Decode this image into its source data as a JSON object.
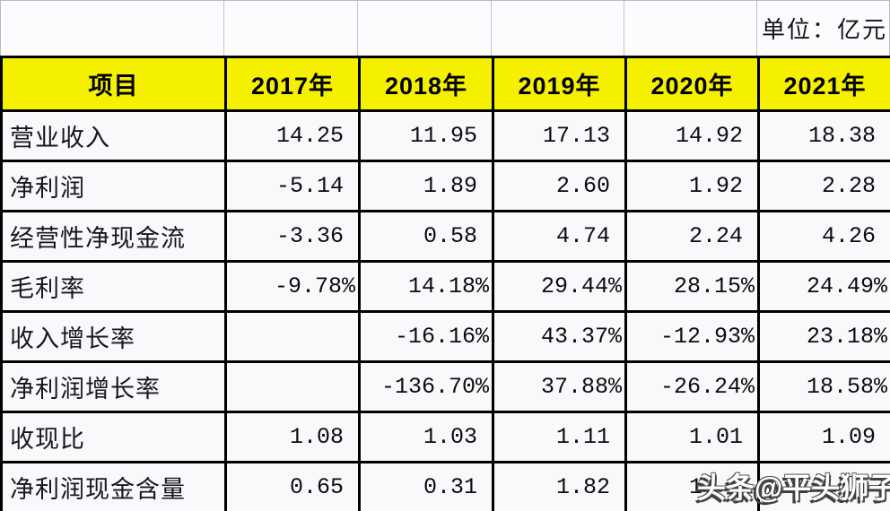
{
  "unit_label": "单位：亿元",
  "watermark": "头条@平头狮子",
  "table": {
    "header": [
      "项目",
      "2017年",
      "2018年",
      "2019年",
      "2020年",
      "2021年"
    ],
    "rows": [
      {
        "label": "营业收入",
        "pct": false,
        "values": [
          "14.25",
          "11.95",
          "17.13",
          "14.92",
          "18.38"
        ]
      },
      {
        "label": "净利润",
        "pct": false,
        "values": [
          "-5.14",
          "1.89",
          "2.60",
          "1.92",
          "2.28"
        ]
      },
      {
        "label": "经营性净现金流",
        "pct": false,
        "values": [
          "-3.36",
          "0.58",
          "4.74",
          "2.24",
          "4.26"
        ]
      },
      {
        "label": "毛利率",
        "pct": true,
        "values": [
          "-9.78%",
          "14.18%",
          "29.44%",
          "28.15%",
          "24.49%"
        ]
      },
      {
        "label": "收入增长率",
        "pct": true,
        "values": [
          "",
          "-16.16%",
          "43.37%",
          "-12.93%",
          "23.18%"
        ]
      },
      {
        "label": "净利润增长率",
        "pct": true,
        "values": [
          "",
          "-136.70%",
          "37.88%",
          "-26.24%",
          "18.58%"
        ]
      },
      {
        "label": "收现比",
        "pct": false,
        "values": [
          "1.08",
          "1.03",
          "1.11",
          "1.01",
          "1.09"
        ]
      },
      {
        "label": "净利润现金含量",
        "pct": false,
        "values": [
          "0.65",
          "0.31",
          "1.82",
          "1.  ",
          ""
        ]
      }
    ]
  },
  "chart_data": {
    "type": "table",
    "title": "",
    "unit": "单位：亿元",
    "categories": [
      "2017年",
      "2018年",
      "2019年",
      "2020年",
      "2021年"
    ],
    "series": [
      {
        "name": "营业收入",
        "values": [
          14.25,
          11.95,
          17.13,
          14.92,
          18.38
        ]
      },
      {
        "name": "净利润",
        "values": [
          -5.14,
          1.89,
          2.6,
          1.92,
          2.28
        ]
      },
      {
        "name": "经营性净现金流",
        "values": [
          -3.36,
          0.58,
          4.74,
          2.24,
          4.26
        ]
      },
      {
        "name": "毛利率",
        "values": [
          "-9.78%",
          "14.18%",
          "29.44%",
          "28.15%",
          "24.49%"
        ]
      },
      {
        "name": "收入增长率",
        "values": [
          null,
          "-16.16%",
          "43.37%",
          "-12.93%",
          "23.18%"
        ]
      },
      {
        "name": "净利润增长率",
        "values": [
          null,
          "-136.70%",
          "37.88%",
          "-26.24%",
          "18.58%"
        ]
      },
      {
        "name": "收现比",
        "values": [
          1.08,
          1.03,
          1.11,
          1.01,
          1.09
        ]
      },
      {
        "name": "净利润现金含量",
        "values": [
          0.65,
          0.31,
          1.82,
          "1.",
          null
        ]
      }
    ],
    "layout": {
      "header_background": "#f5f000",
      "grid": "on",
      "watermark": "头条@平头狮子"
    }
  },
  "colors": {
    "header_yellow": "#f5f000",
    "grid_black": "#000000",
    "cell_background": "#f9f9fb",
    "unit_row_border": "#b9b9c0",
    "watermark_fill": "#ffffff",
    "watermark_outline": "#3f3f3f"
  }
}
